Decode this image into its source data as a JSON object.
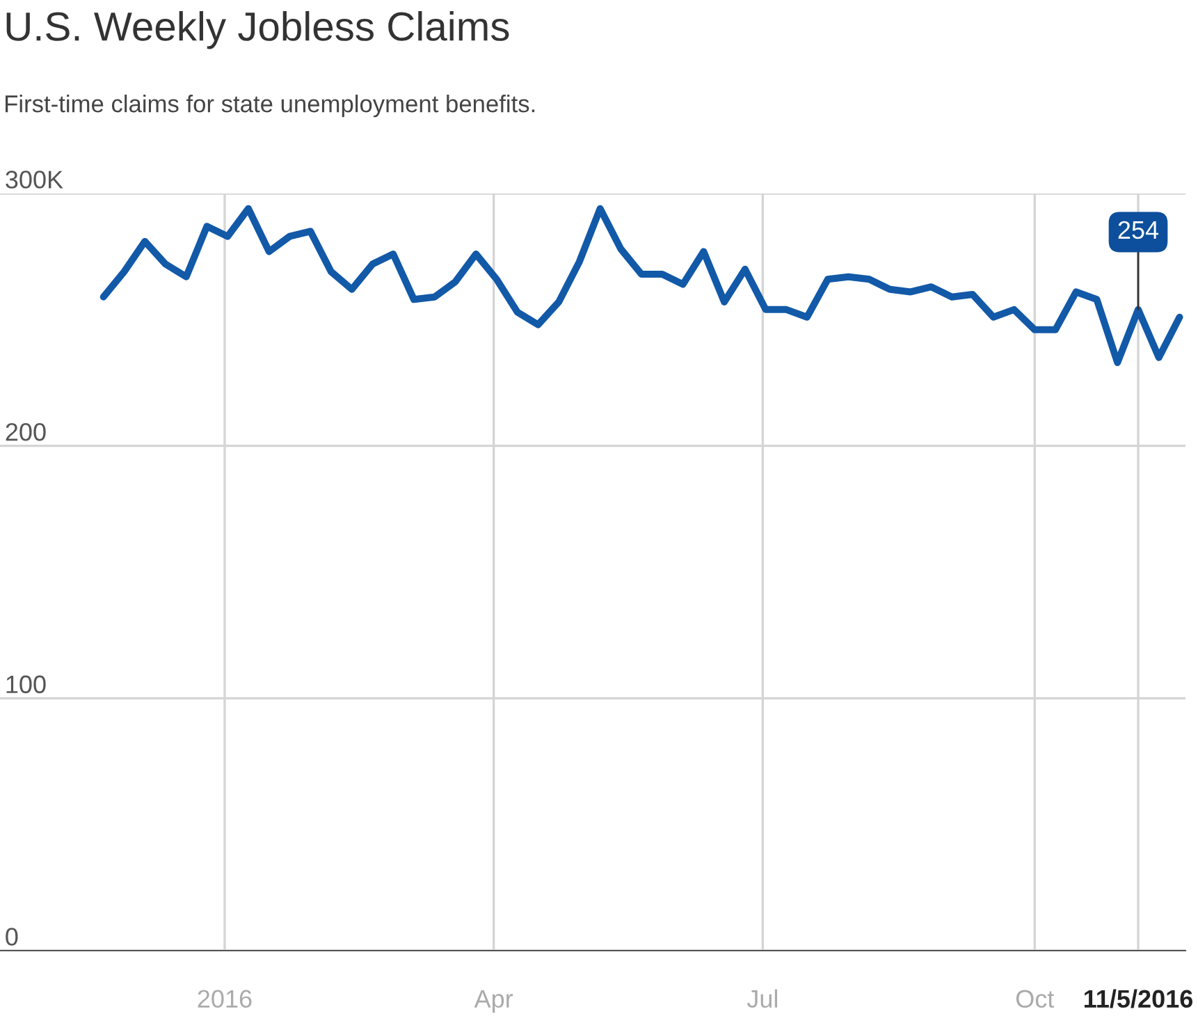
{
  "chart_data": {
    "type": "line",
    "title": "U.S. Weekly Jobless Claims",
    "subtitle": "First-time claims for state unemployment benefits.",
    "x": [
      "2015-11-21",
      "2015-11-28",
      "2015-12-05",
      "2015-12-12",
      "2015-12-19",
      "2015-12-26",
      "2016-01-02",
      "2016-01-09",
      "2016-01-16",
      "2016-01-23",
      "2016-01-30",
      "2016-02-06",
      "2016-02-13",
      "2016-02-20",
      "2016-02-27",
      "2016-03-05",
      "2016-03-12",
      "2016-03-19",
      "2016-03-26",
      "2016-04-02",
      "2016-04-09",
      "2016-04-16",
      "2016-04-23",
      "2016-04-30",
      "2016-05-07",
      "2016-05-14",
      "2016-05-21",
      "2016-05-28",
      "2016-06-04",
      "2016-06-11",
      "2016-06-18",
      "2016-06-25",
      "2016-07-02",
      "2016-07-09",
      "2016-07-16",
      "2016-07-23",
      "2016-07-30",
      "2016-08-06",
      "2016-08-13",
      "2016-08-20",
      "2016-08-27",
      "2016-09-03",
      "2016-09-10",
      "2016-09-17",
      "2016-09-24",
      "2016-10-01",
      "2016-10-08",
      "2016-10-15",
      "2016-10-22",
      "2016-10-29",
      "2016-11-05",
      "2016-11-12",
      "2016-11-19"
    ],
    "series": [
      {
        "color": "#1259a8",
        "values": [
          259,
          269,
          281,
          272,
          267,
          287,
          283,
          294,
          277,
          283,
          285,
          269,
          262,
          272,
          276,
          258,
          259,
          265,
          276,
          266,
          253,
          248,
          257,
          273,
          294,
          278,
          268,
          268,
          264,
          277,
          257,
          270,
          254,
          254,
          251,
          266,
          267,
          266,
          262,
          261,
          263,
          259,
          260,
          251,
          254,
          246,
          246,
          261,
          258,
          233,
          254,
          235,
          251
        ]
      }
    ],
    "xlim": [
      "2015-10-17",
      "2016-11-21"
    ],
    "xticks": [
      {
        "value": "2016-01-01",
        "label": "2016"
      },
      {
        "value": "2016-04-01",
        "label": "Apr"
      },
      {
        "value": "2016-07-01",
        "label": "Jul"
      },
      {
        "value": "2016-10-01",
        "label": "Oct"
      },
      {
        "value": "2016-11-05",
        "label": "11/5/2016"
      }
    ],
    "ylim": [
      0,
      300
    ],
    "yticks": [
      0,
      100,
      200,
      {
        "value": 300,
        "label": "300K"
      }
    ],
    "annotations": [
      {
        "text": "254",
        "x": "2016-11-05",
        "y": 254
      }
    ],
    "grid": true,
    "legend": false,
    "marker": "none",
    "line_style": "solid"
  }
}
